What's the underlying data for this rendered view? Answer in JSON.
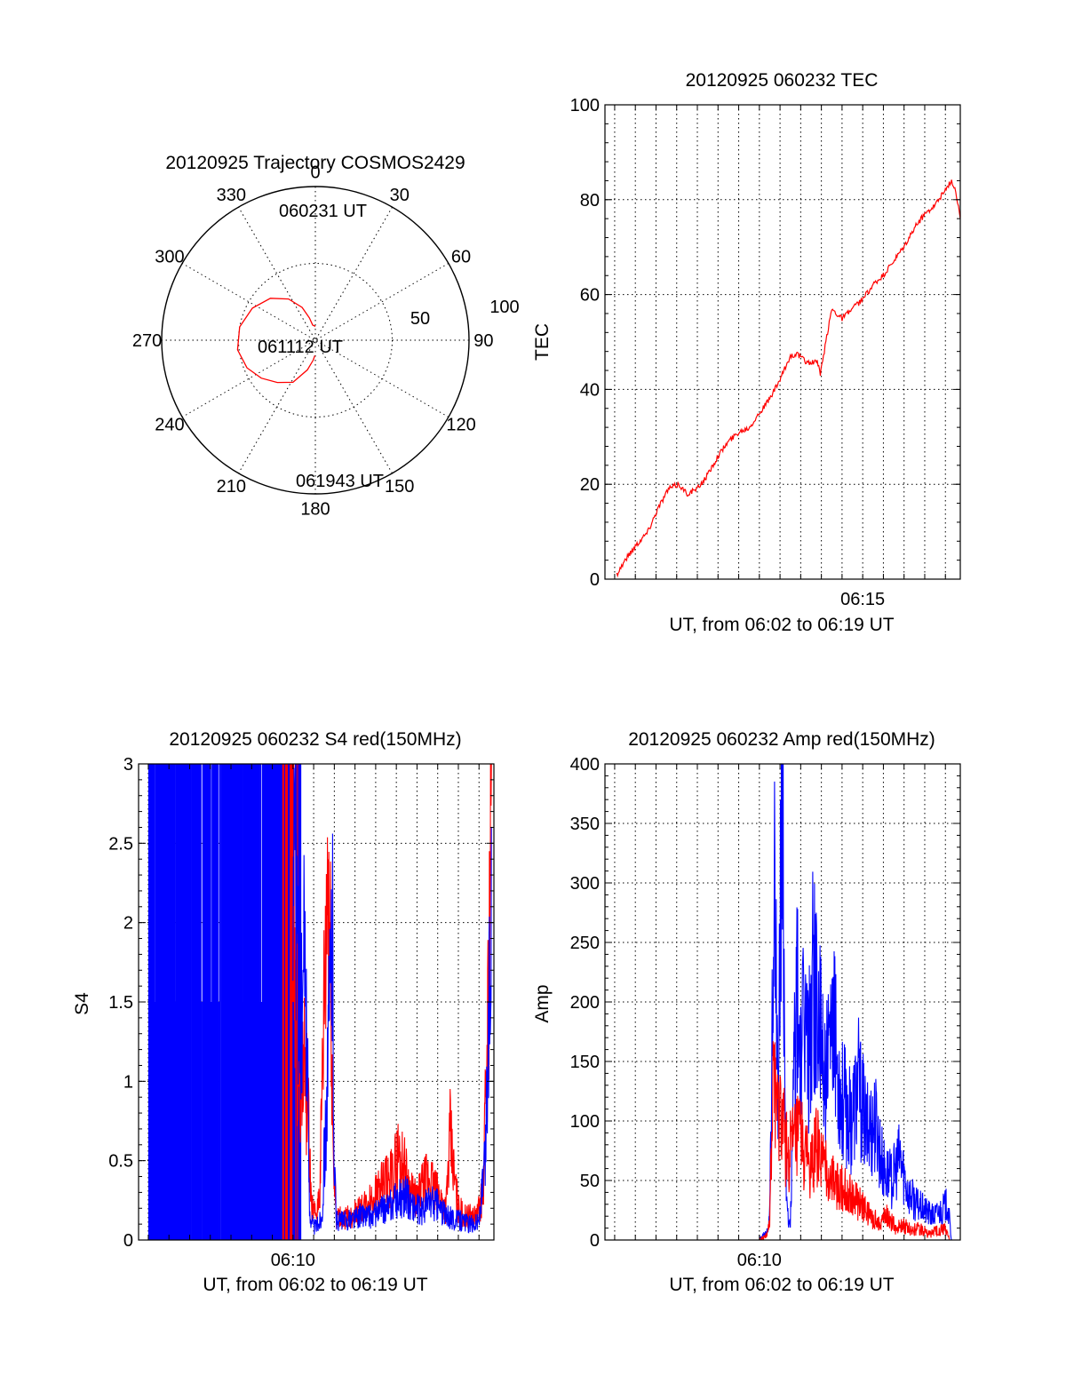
{
  "colors": {
    "red": "#ff0000",
    "blue": "#0000ff",
    "axis": "#000000"
  },
  "chart_data": [
    {
      "id": "trajectory",
      "type": "polar",
      "title": "20120925 Trajectory COSMOS2429",
      "angle_labels": [
        "0",
        "30",
        "60",
        "90",
        "120",
        "150",
        "180",
        "210",
        "240",
        "270",
        "300",
        "330"
      ],
      "radius_labels": [
        "50",
        "100"
      ],
      "rlim": [
        0,
        100
      ],
      "grid": true,
      "series": [
        {
          "color": "#ff0000",
          "points": [
            [
              0,
              9
            ],
            [
              350,
              10
            ],
            [
              345,
              15
            ],
            [
              338,
              23
            ],
            [
              327,
              32
            ],
            [
              313,
              40
            ],
            [
              297,
              46
            ],
            [
              280,
              50
            ],
            [
              263,
              51
            ],
            [
              248,
              48
            ],
            [
              235,
              43
            ],
            [
              222,
              37
            ],
            [
              208,
              31
            ],
            [
              195,
              20
            ],
            [
              186,
              13
            ],
            [
              182,
              10
            ]
          ]
        }
      ],
      "annotations": [
        {
          "text": "060231 UT",
          "angle": 8,
          "r": 84
        },
        {
          "text": "061112 UT",
          "angle": 0,
          "r": 0
        },
        {
          "text": "061943 UT",
          "angle": 179,
          "r": 90
        }
      ]
    },
    {
      "id": "tec",
      "type": "line",
      "title": "20120925 060232 TEC",
      "xlabel": "UT, from 06:02 to 06:19 UT",
      "ylabel": "TEC",
      "xlim": [
        2.53,
        19.72
      ],
      "ylim": [
        0,
        100
      ],
      "yticks": [
        "0",
        "20",
        "40",
        "60",
        "80",
        "100"
      ],
      "xticks": [
        {
          "value": 15,
          "label": "06:15"
        }
      ],
      "grid": true,
      "series": [
        {
          "color": "#ff0000",
          "x": [
            3.1,
            3.5,
            4.0,
            4.6,
            5.1,
            5.6,
            6.1,
            6.5,
            7.0,
            7.5,
            8.0,
            8.5,
            9.0,
            9.5,
            10.0,
            10.5,
            11.0,
            11.3,
            11.5,
            11.8,
            12.2,
            12.3,
            12.5,
            12.8,
            12.95,
            13.1,
            13.5,
            14.0,
            14.5,
            15.0,
            15.5,
            16.0,
            16.5,
            17.0,
            17.5,
            18.0,
            18.5,
            19.0,
            19.3,
            19.5,
            19.72
          ],
          "y": [
            1,
            4,
            7,
            10,
            15,
            19,
            20,
            18,
            19,
            22,
            26,
            29,
            31,
            32,
            35,
            38,
            42,
            45,
            47,
            47.5,
            46,
            45.8,
            45.5,
            46,
            43,
            47,
            57,
            55,
            57,
            59,
            62,
            64,
            67,
            70,
            74,
            77,
            79,
            82,
            84,
            82,
            76
          ]
        }
      ]
    },
    {
      "id": "s4",
      "type": "line",
      "title": "20120925 060232 S4 red(150MHz)",
      "xlabel": "UT, from 06:02 to 06:19 UT",
      "ylabel": "S4",
      "xlim": [
        2.53,
        19.72
      ],
      "ylim": [
        0,
        3
      ],
      "yticks": [
        "0",
        "0.5",
        "1",
        "1.5",
        "2",
        "2.5",
        "3"
      ],
      "xticks": [
        {
          "value": 10,
          "label": "06:10"
        }
      ],
      "grid": true,
      "saturated_region": {
        "x": [
          3.0,
          10.3
        ],
        "value": 3
      },
      "series": [
        {
          "color": "#ff0000",
          "x": [
            10.0,
            10.2,
            10.4,
            10.55,
            10.7,
            10.8,
            10.9,
            11.1,
            11.3,
            11.5,
            11.7,
            11.85,
            11.95,
            12.1,
            12.4,
            12.8,
            13.2,
            13.6,
            14.0,
            14.4,
            14.8,
            15.1,
            15.4,
            15.7,
            16.0,
            16.3,
            16.6,
            16.9,
            17.2,
            17.4,
            17.6,
            17.8,
            18.0,
            18.3,
            18.6,
            18.9,
            19.2,
            19.45,
            19.6
          ],
          "y": [
            2.0,
            1.3,
            1.0,
            1.1,
            0.9,
            0.5,
            0.2,
            0.15,
            0.3,
            1.4,
            2.3,
            1.5,
            0.5,
            0.15,
            0.13,
            0.15,
            0.18,
            0.22,
            0.3,
            0.35,
            0.4,
            0.55,
            0.45,
            0.3,
            0.25,
            0.35,
            0.4,
            0.3,
            0.25,
            0.2,
            0.65,
            0.4,
            0.2,
            0.15,
            0.15,
            0.15,
            0.3,
            1.5,
            3.0
          ]
        },
        {
          "color": "#0000ff",
          "x": [
            10.0,
            10.2,
            10.4,
            10.6,
            10.8,
            11.0,
            11.2,
            11.4,
            11.6,
            11.8,
            11.9,
            12.0,
            12.1,
            12.3,
            12.6,
            13.0,
            13.4,
            13.8,
            14.2,
            14.6,
            15.0,
            15.4,
            15.8,
            16.2,
            16.6,
            17.0,
            17.4,
            17.8,
            18.2,
            18.6,
            19.0,
            19.3,
            19.5,
            19.6
          ],
          "y": [
            2.9,
            1.9,
            1.3,
            1.9,
            0.2,
            0.08,
            0.1,
            0.15,
            0.8,
            1.5,
            2.1,
            0.5,
            0.12,
            0.12,
            0.12,
            0.14,
            0.16,
            0.15,
            0.18,
            0.2,
            0.25,
            0.28,
            0.22,
            0.18,
            0.25,
            0.22,
            0.15,
            0.13,
            0.12,
            0.1,
            0.12,
            0.5,
            1.5,
            2.6
          ]
        }
      ]
    },
    {
      "id": "amp",
      "type": "line",
      "title": "20120925 060232 Amp red(150MHz)",
      "xlabel": "UT, from 06:02 to 06:19 UT",
      "ylabel": "Amp",
      "xlim": [
        2.53,
        19.72
      ],
      "ylim": [
        0,
        400
      ],
      "yticks": [
        "0",
        "50",
        "100",
        "150",
        "200",
        "250",
        "300",
        "350",
        "400"
      ],
      "xticks": [
        {
          "value": 10,
          "label": "06:10"
        }
      ],
      "grid": true,
      "series": [
        {
          "color": "#0000ff",
          "x": [
            3.0,
            10.0,
            10.3,
            10.5,
            10.6,
            10.7,
            10.8,
            10.9,
            11.0,
            11.1,
            11.2,
            11.3,
            11.4,
            11.5,
            11.6,
            11.7,
            11.8,
            11.9,
            12.0,
            12.2,
            12.4,
            12.6,
            12.8,
            13.0,
            13.3,
            13.6,
            14.0,
            14.4,
            14.8,
            15.2,
            15.6,
            16.0,
            16.4,
            16.8,
            17.2,
            17.6,
            18.0,
            18.4,
            18.8,
            19.1,
            19.3
          ],
          "y": [
            0,
            0,
            5,
            20,
            150,
            290,
            230,
            120,
            250,
            380,
            200,
            60,
            10,
            15,
            80,
            160,
            210,
            180,
            150,
            190,
            160,
            230,
            200,
            160,
            140,
            170,
            120,
            100,
            130,
            90,
            100,
            60,
            50,
            70,
            40,
            30,
            25,
            20,
            25,
            30,
            0
          ]
        },
        {
          "color": "#ff0000",
          "x": [
            3.0,
            10.0,
            10.3,
            10.5,
            10.6,
            10.7,
            10.8,
            10.9,
            11.0,
            11.2,
            11.4,
            11.6,
            11.8,
            12.0,
            12.2,
            12.5,
            12.8,
            13.1,
            13.4,
            13.8,
            14.2,
            14.6,
            15.0,
            15.4,
            15.8,
            16.2,
            16.6,
            17.0,
            17.4,
            17.8,
            18.2,
            18.6,
            19.0,
            19.2
          ],
          "y": [
            0,
            0,
            3,
            15,
            80,
            150,
            120,
            90,
            110,
            90,
            70,
            80,
            85,
            90,
            70,
            60,
            80,
            60,
            55,
            45,
            40,
            35,
            28,
            20,
            15,
            20,
            10,
            12,
            8,
            10,
            5,
            8,
            10,
            0
          ]
        }
      ]
    }
  ]
}
